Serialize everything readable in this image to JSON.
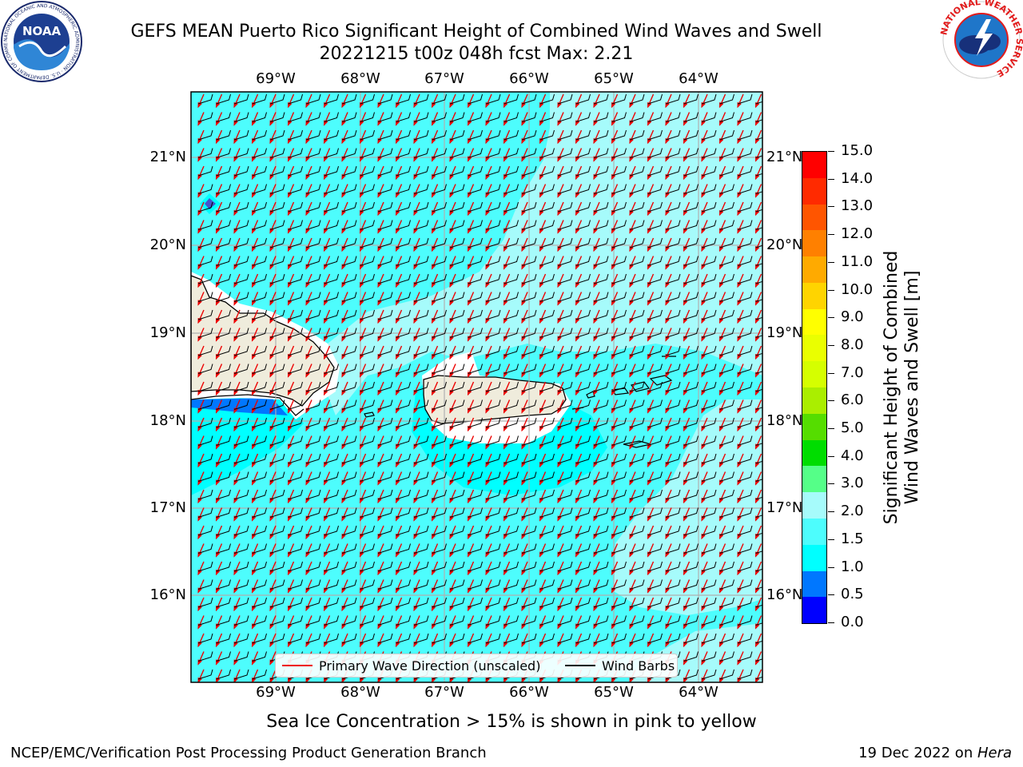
{
  "header": {
    "title_line1": "GEFS MEAN Puerto Rico Significant Height of Combined Wind Waves and Swell",
    "title_line2": "20221215 t00z 048h fcst   Max: 2.21",
    "left_logo_text": "NOAA",
    "left_logo_ring_text": "NATIONAL OCEANIC AND ATMOSPHERIC ADMINISTRATION · U.S. DEPARTMENT OF COMMERCE",
    "right_logo_ring_text": "NATIONAL WEATHER SERVICE"
  },
  "map": {
    "longitude_ticks": [
      "69°W",
      "68°W",
      "67°W",
      "66°W",
      "65°W",
      "64°W"
    ],
    "latitude_ticks": [
      "21°N",
      "20°N",
      "19°N",
      "18°N",
      "17°N",
      "16°N"
    ],
    "legend": {
      "wave_label": "Primary Wave Direction (unscaled)",
      "wind_label": "Wind Barbs",
      "wave_color": "#ee0000",
      "wind_color": "#000000"
    },
    "colors": {
      "land": "#efecdc",
      "sea_1_0_1_5": "#00ffff",
      "sea_1_5_2_0": "#4dfdfd",
      "sea_2_0_3_0": "#a6fbfb",
      "sea_0_5_1_0": "#0077ff"
    }
  },
  "colorbar": {
    "label_line1": "Significant Height of Combined",
    "label_line2": "Wind Waves and Swell [m]",
    "ticks": [
      "15.0",
      "14.0",
      "13.0",
      "12.0",
      "11.0",
      "10.0",
      "9.0",
      "8.0",
      "7.0",
      "6.0",
      "5.0",
      "4.0",
      "3.0",
      "2.0",
      "1.5",
      "1.0",
      "0.5",
      "0.0"
    ],
    "colors_top_to_bottom": [
      "#ff0000",
      "#ff2a00",
      "#ff5500",
      "#ff8000",
      "#ffaa00",
      "#ffd400",
      "#ffff00",
      "#eaff00",
      "#d5ff00",
      "#aaee00",
      "#55dd00",
      "#00dd00",
      "#55ff88",
      "#a6fbfb",
      "#4dfdfd",
      "#00ffff",
      "#0077ff",
      "#0000ff"
    ]
  },
  "subtitle": "Sea Ice Concentration > 15% is shown in pink to yellow",
  "footer": {
    "left": "NCEP/EMC/Verification Post Processing Product Generation Branch",
    "right_prefix": "19 Dec 2022 on ",
    "right_machine": "Hera"
  }
}
